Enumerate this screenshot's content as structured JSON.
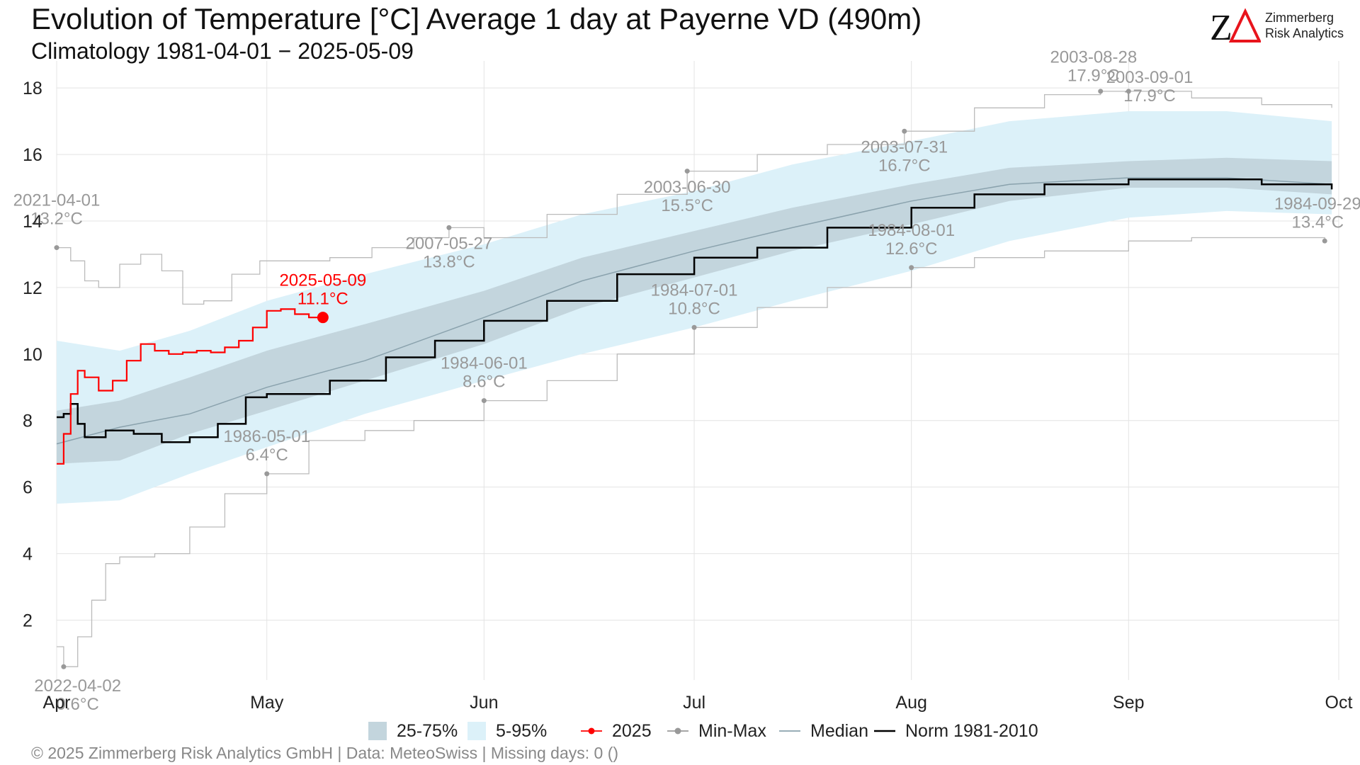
{
  "header": {
    "title": "Evolution of Temperature [°C] Average 1 day at Payerne  VD (490m)",
    "subtitle": "Climatology 1981-04-01 − 2025-05-09"
  },
  "logo": {
    "mark_text": "ZΔ",
    "name_line1": "Zimmerberg",
    "name_line2": "Risk Analytics"
  },
  "footer": {
    "text": "©  2025 Zimmerberg Risk Analytics GmbH | Data: MeteoSwiss | Missing days: 0 ()"
  },
  "legend": {
    "items": [
      {
        "label": "25-75%",
        "kind": "band",
        "color": "#c3d5dd"
      },
      {
        "label": "5-95%",
        "kind": "band",
        "color": "#dcf1f9"
      },
      {
        "label": "2025",
        "kind": "point-line",
        "color": "#ff0000"
      },
      {
        "label": "Min-Max",
        "kind": "point-line",
        "color": "#999999"
      },
      {
        "label": "Median",
        "kind": "line",
        "color": "#8aa2ad"
      },
      {
        "label": "Norm 1981-2010",
        "kind": "line",
        "color": "#000000"
      }
    ]
  },
  "chart_data": {
    "type": "line",
    "title": "Evolution of Temperature [°C] Average 1 day at Payerne  VD (490m)",
    "subtitle": "Climatology 1981-04-01 − 2025-05-09",
    "xlabel": "",
    "ylabel": "",
    "x_range": [
      "2025-04-01",
      "2025-10-01"
    ],
    "ylim": [
      0.2,
      18.6
    ],
    "y_ticks": [
      2,
      4,
      6,
      8,
      10,
      12,
      14,
      16,
      18
    ],
    "x_ticks": [
      {
        "label": "Apr",
        "date": "2025-04-01"
      },
      {
        "label": "May",
        "date": "2025-05-01"
      },
      {
        "label": "Jun",
        "date": "2025-06-01"
      },
      {
        "label": "Jul",
        "date": "2025-07-01"
      },
      {
        "label": "Aug",
        "date": "2025-08-01"
      },
      {
        "label": "Sep",
        "date": "2025-09-01"
      },
      {
        "label": "Oct",
        "date": "2025-10-01"
      }
    ],
    "grid": true,
    "legend_position": "bottom",
    "colors": {
      "band_25_75": "#c3d5dd",
      "band_5_95": "#dcf1f9",
      "current": "#ff0000",
      "minmax": "#bbbbbb",
      "minmax_label": "#999999",
      "median": "#8aa2ad",
      "norm": "#000000"
    },
    "bands": {
      "p5_95": {
        "x": [
          "2025-04-01",
          "2025-04-10",
          "2025-04-20",
          "2025-05-01",
          "2025-05-15",
          "2025-06-01",
          "2025-06-15",
          "2025-07-01",
          "2025-07-15",
          "2025-08-01",
          "2025-08-15",
          "2025-09-01",
          "2025-09-15",
          "2025-09-30"
        ],
        "lower": [
          5.5,
          5.6,
          6.4,
          7.2,
          8.2,
          9.2,
          10.0,
          10.8,
          11.6,
          12.5,
          13.4,
          14.1,
          14.3,
          14.2
        ],
        "upper": [
          10.4,
          10.1,
          10.7,
          11.6,
          12.4,
          13.3,
          14.2,
          14.9,
          15.7,
          16.4,
          17.0,
          17.3,
          17.3,
          17.0
        ]
      },
      "p25_75": {
        "x": [
          "2025-04-01",
          "2025-04-10",
          "2025-04-20",
          "2025-05-01",
          "2025-05-15",
          "2025-06-01",
          "2025-06-15",
          "2025-07-01",
          "2025-07-15",
          "2025-08-01",
          "2025-08-15",
          "2025-09-01",
          "2025-09-15",
          "2025-09-30"
        ],
        "lower": [
          6.7,
          6.8,
          7.6,
          8.3,
          9.2,
          10.3,
          11.4,
          12.3,
          13.1,
          13.9,
          14.6,
          15.0,
          15.0,
          14.8
        ],
        "upper": [
          8.3,
          8.6,
          9.3,
          10.1,
          10.9,
          11.9,
          12.9,
          13.7,
          14.4,
          15.1,
          15.6,
          15.8,
          15.9,
          15.8
        ]
      }
    },
    "series": [
      {
        "name": "Median",
        "x": [
          "2025-04-01",
          "2025-04-10",
          "2025-04-20",
          "2025-05-01",
          "2025-05-15",
          "2025-06-01",
          "2025-06-15",
          "2025-07-01",
          "2025-07-15",
          "2025-08-01",
          "2025-08-15",
          "2025-09-01",
          "2025-09-15",
          "2025-09-30"
        ],
        "values": [
          7.3,
          7.8,
          8.2,
          9.0,
          9.8,
          11.1,
          12.2,
          13.1,
          13.8,
          14.6,
          15.1,
          15.3,
          15.3,
          15.1
        ]
      },
      {
        "name": "Norm 1981-2010",
        "x": [
          "2025-04-01",
          "2025-04-02",
          "2025-04-03",
          "2025-04-04",
          "2025-04-05",
          "2025-04-08",
          "2025-04-12",
          "2025-04-16",
          "2025-04-20",
          "2025-04-24",
          "2025-04-28",
          "2025-05-01",
          "2025-05-10",
          "2025-05-18",
          "2025-05-25",
          "2025-06-01",
          "2025-06-10",
          "2025-06-20",
          "2025-07-01",
          "2025-07-10",
          "2025-07-20",
          "2025-08-01",
          "2025-08-10",
          "2025-08-20",
          "2025-09-01",
          "2025-09-10",
          "2025-09-20",
          "2025-09-30"
        ],
        "values": [
          8.1,
          8.2,
          8.5,
          7.9,
          7.5,
          7.7,
          7.6,
          7.35,
          7.5,
          7.9,
          8.7,
          8.8,
          9.2,
          9.9,
          10.4,
          11.0,
          11.6,
          12.4,
          12.9,
          13.2,
          13.8,
          14.4,
          14.8,
          15.1,
          15.25,
          15.25,
          15.1,
          14.95
        ]
      },
      {
        "name": "2025",
        "x": [
          "2025-04-01",
          "2025-04-02",
          "2025-04-03",
          "2025-04-04",
          "2025-04-05",
          "2025-04-07",
          "2025-04-09",
          "2025-04-11",
          "2025-04-13",
          "2025-04-15",
          "2025-04-17",
          "2025-04-19",
          "2025-04-21",
          "2025-04-23",
          "2025-04-25",
          "2025-04-27",
          "2025-04-29",
          "2025-05-01",
          "2025-05-03",
          "2025-05-05",
          "2025-05-07",
          "2025-05-09"
        ],
        "values": [
          6.7,
          7.6,
          8.8,
          9.5,
          9.3,
          8.9,
          9.2,
          9.8,
          10.3,
          10.1,
          10.0,
          10.05,
          10.1,
          10.05,
          10.2,
          10.4,
          10.8,
          11.3,
          11.35,
          11.2,
          11.1,
          11.1
        ]
      },
      {
        "name": "Max",
        "x": [
          "2025-04-01",
          "2025-04-03",
          "2025-04-05",
          "2025-04-07",
          "2025-04-10",
          "2025-04-13",
          "2025-04-16",
          "2025-04-19",
          "2025-04-22",
          "2025-04-26",
          "2025-04-30",
          "2025-05-04",
          "2025-05-10",
          "2025-05-16",
          "2025-05-22",
          "2025-05-27",
          "2025-06-01",
          "2025-06-10",
          "2025-06-20",
          "2025-06-30",
          "2025-07-10",
          "2025-07-20",
          "2025-07-31",
          "2025-08-10",
          "2025-08-20",
          "2025-08-28",
          "2025-09-01",
          "2025-09-10",
          "2025-09-20",
          "2025-09-30"
        ],
        "values": [
          13.2,
          12.8,
          12.2,
          12.0,
          12.7,
          13.0,
          12.5,
          11.5,
          11.6,
          12.4,
          12.8,
          12.8,
          12.9,
          13.2,
          13.5,
          13.8,
          13.5,
          14.2,
          14.8,
          15.5,
          16.0,
          16.3,
          16.7,
          17.4,
          17.8,
          17.9,
          17.9,
          17.7,
          17.5,
          17.4
        ]
      },
      {
        "name": "Min",
        "x": [
          "2025-04-01",
          "2025-04-02",
          "2025-04-04",
          "2025-04-06",
          "2025-04-08",
          "2025-04-10",
          "2025-04-15",
          "2025-04-20",
          "2025-04-25",
          "2025-05-01",
          "2025-05-07",
          "2025-05-15",
          "2025-05-22",
          "2025-06-01",
          "2025-06-10",
          "2025-06-20",
          "2025-07-01",
          "2025-07-10",
          "2025-07-20",
          "2025-08-01",
          "2025-08-10",
          "2025-08-20",
          "2025-09-01",
          "2025-09-10",
          "2025-09-20",
          "2025-09-29"
        ],
        "values": [
          1.2,
          0.6,
          1.5,
          2.6,
          3.7,
          3.9,
          4.0,
          4.8,
          5.8,
          6.4,
          7.4,
          7.7,
          8.0,
          8.6,
          9.2,
          10.0,
          10.8,
          11.4,
          12.0,
          12.6,
          12.9,
          13.1,
          13.4,
          13.5,
          13.5,
          13.4
        ]
      }
    ],
    "annotations": [
      {
        "date": "2021-04-01",
        "value": "13.2°C",
        "x": "2025-04-01",
        "y": 13.2,
        "kind": "minmax",
        "label_dx": 0,
        "label_dy": -1.0
      },
      {
        "date": "2022-04-02",
        "value": "0.6°C",
        "x": "2025-04-02",
        "y": 0.6,
        "kind": "minmax",
        "label_dx": 2,
        "label_dy": 1.0
      },
      {
        "date": "1986-05-01",
        "value": "6.4°C",
        "x": "2025-05-01",
        "y": 6.4,
        "kind": "minmax",
        "label_dx": 0,
        "label_dy": -0.7
      },
      {
        "date": "2007-05-27",
        "value": "13.8°C",
        "x": "2025-05-27",
        "y": 13.8,
        "kind": "minmax",
        "label_dx": 0,
        "label_dy": 0.9
      },
      {
        "date": "1984-06-01",
        "value": "8.6°C",
        "x": "2025-06-01",
        "y": 8.6,
        "kind": "minmax",
        "label_dx": 0,
        "label_dy": -0.7
      },
      {
        "date": "2003-06-30",
        "value": "15.5°C",
        "x": "2025-06-30",
        "y": 15.5,
        "kind": "minmax",
        "label_dx": 0,
        "label_dy": 0.9
      },
      {
        "date": "1984-07-01",
        "value": "10.8°C",
        "x": "2025-07-01",
        "y": 10.8,
        "kind": "minmax",
        "label_dx": 0,
        "label_dy": -0.7
      },
      {
        "date": "2003-07-31",
        "value": "16.7°C",
        "x": "2025-07-31",
        "y": 16.7,
        "kind": "minmax",
        "label_dx": 0,
        "label_dy": 0.9
      },
      {
        "date": "1984-08-01",
        "value": "12.6°C",
        "x": "2025-08-01",
        "y": 12.6,
        "kind": "minmax",
        "label_dx": 0,
        "label_dy": -0.7
      },
      {
        "date": "2003-08-28",
        "value": "17.9°C",
        "x": "2025-08-28",
        "y": 17.9,
        "kind": "minmax",
        "label_dx": -1,
        "label_dy": -0.6
      },
      {
        "date": "2003-09-01",
        "value": "17.9°C",
        "x": "2025-09-01",
        "y": 17.9,
        "kind": "minmax",
        "label_dx": 3,
        "label_dy": 0.0
      },
      {
        "date": "1984-09-29",
        "value": "13.4°C",
        "x": "2025-09-29",
        "y": 13.4,
        "kind": "minmax",
        "label_dx": -1,
        "label_dy": -0.7
      },
      {
        "date": "2025-05-09",
        "value": "11.1°C",
        "x": "2025-05-09",
        "y": 11.1,
        "kind": "current",
        "label_dx": 0,
        "label_dy": -0.7
      }
    ]
  }
}
